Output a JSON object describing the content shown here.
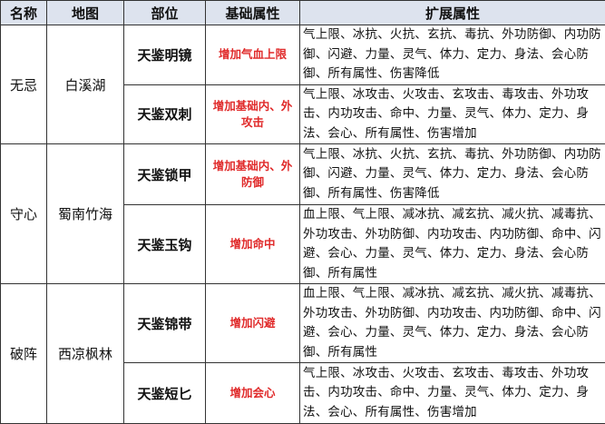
{
  "headers": [
    "名称",
    "地图",
    "部位",
    "基础属性",
    "扩展属性"
  ],
  "groups": [
    {
      "name": "无忌",
      "map": "白溪湖",
      "items": [
        {
          "part": "天鉴明镜",
          "base": "增加气血上限",
          "ext": "气上限、冰抗、火抗、玄抗、毒抗、外功防御、内功防御、闪避、力量、灵气、体力、定力、身法、会心防御、所有属性、伤害降低"
        },
        {
          "part": "天鉴双刺",
          "base": "增加基础内、外攻击",
          "ext": "气上限、冰攻击、火攻击、玄攻击、毒攻击、外功攻击、内功攻击、命中、力量、灵气、体力、定力、身法、会心、所有属性、伤害增加"
        }
      ]
    },
    {
      "name": "守心",
      "map": "蜀南竹海",
      "items": [
        {
          "part": "天鉴锁甲",
          "base": "增加基础内、外防御",
          "ext": "气上限、冰抗、火抗、玄抗、毒抗、外功防御、内功防御、闪避、力量、灵气、体力、定力、身法、会心防御、所有属性、伤害降低"
        },
        {
          "part": "天鉴玉钩",
          "base": "增加命中",
          "ext": "血上限、气上限、减冰抗、减玄抗、减火抗、减毒抗、外功攻击、外功防御、内功攻击、内功防御、命中、闪避、会心、力量、灵气、体力、定力、身法、会心防御、所有属性"
        }
      ]
    },
    {
      "name": "破阵",
      "map": "西凉枫林",
      "items": [
        {
          "part": "天鉴锦带",
          "base": "增加闪避",
          "ext": "血上限、气上限、减冰抗、减玄抗、减火抗、减毒抗、外功攻击、外功防御、内功攻击、内功防御、命中、闪避、会心、力量、灵气、体力、定力、身法、会心防御、所有属性"
        },
        {
          "part": "天鉴短匕",
          "base": "增加会心",
          "ext": "气上限、冰攻击、火攻击、玄攻击、毒攻击、外功攻击、内功攻击、命中、力量、灵气、体力、定力、身法、会心、所有属性、伤害增加"
        }
      ]
    }
  ],
  "colors": {
    "header_bg": "#dde3ee",
    "base_text": "#e02a2a"
  }
}
